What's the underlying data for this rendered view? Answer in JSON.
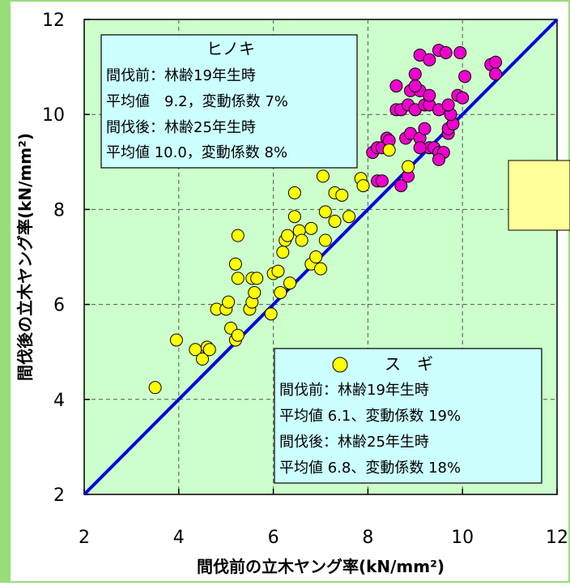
{
  "chart_data": {
    "type": "scatter",
    "xlabel": "間伐前の立木ヤング率(kN/mm²)",
    "ylabel": "間伐後の立木ヤング率(kN/mm²)",
    "xlim": [
      2,
      12
    ],
    "ylim": [
      2,
      12
    ],
    "xticks": [
      "2",
      "4",
      "6",
      "8",
      "10",
      "12"
    ],
    "yticks": [
      "2",
      "4",
      "6",
      "8",
      "10",
      "12"
    ],
    "grid": "dashed",
    "reference_line": {
      "x": [
        2,
        12
      ],
      "y": [
        2,
        12
      ]
    },
    "series": [
      {
        "name": "ヒノキ",
        "color": "#ee00cc",
        "points": [
          [
            8.1,
            9.2
          ],
          [
            8.2,
            9.3
          ],
          [
            8.3,
            9.3
          ],
          [
            8.4,
            9.5
          ],
          [
            8.45,
            9.45
          ],
          [
            8.2,
            8.6
          ],
          [
            8.3,
            8.6
          ],
          [
            8.7,
            8.5
          ],
          [
            8.85,
            8.7
          ],
          [
            8.8,
            9.5
          ],
          [
            8.9,
            9.6
          ],
          [
            9.1,
            9.5
          ],
          [
            9.2,
            9.7
          ],
          [
            9.3,
            9.3
          ],
          [
            9.1,
            9.3
          ],
          [
            9.4,
            9.3
          ],
          [
            9.5,
            9.2
          ],
          [
            9.6,
            9.2
          ],
          [
            9.5,
            9.05
          ],
          [
            9.7,
            9.6
          ],
          [
            9.7,
            9.7
          ],
          [
            9.8,
            9.8
          ],
          [
            9.75,
            10.0
          ],
          [
            8.6,
            10.1
          ],
          [
            8.7,
            10.1
          ],
          [
            8.85,
            10.2
          ],
          [
            9.0,
            10.1
          ],
          [
            9.2,
            10.2
          ],
          [
            9.3,
            10.2
          ],
          [
            9.5,
            10.1
          ],
          [
            9.7,
            10.2
          ],
          [
            9.9,
            10.4
          ],
          [
            10.0,
            10.35
          ],
          [
            8.9,
            10.5
          ],
          [
            9.1,
            10.5
          ],
          [
            9.0,
            10.6
          ],
          [
            9.3,
            10.4
          ],
          [
            8.6,
            10.6
          ],
          [
            9.0,
            10.85
          ],
          [
            9.1,
            11.25
          ],
          [
            9.3,
            11.15
          ],
          [
            9.5,
            11.35
          ],
          [
            9.65,
            11.3
          ],
          [
            9.95,
            11.3
          ],
          [
            10.05,
            10.8
          ],
          [
            10.6,
            11.05
          ],
          [
            10.7,
            11.1
          ],
          [
            10.7,
            10.85
          ]
        ]
      },
      {
        "name": "スギ",
        "color": "#ffff00",
        "points": [
          [
            3.5,
            4.25
          ],
          [
            3.95,
            5.25
          ],
          [
            4.35,
            5.05
          ],
          [
            4.5,
            4.85
          ],
          [
            4.6,
            5.1
          ],
          [
            4.65,
            5.05
          ],
          [
            4.8,
            5.9
          ],
          [
            5.0,
            5.9
          ],
          [
            5.05,
            6.05
          ],
          [
            5.1,
            5.5
          ],
          [
            5.2,
            5.25
          ],
          [
            5.25,
            5.35
          ],
          [
            5.2,
            6.85
          ],
          [
            5.25,
            6.55
          ],
          [
            5.25,
            7.45
          ],
          [
            5.5,
            5.9
          ],
          [
            5.55,
            6.05
          ],
          [
            5.55,
            6.55
          ],
          [
            5.6,
            6.25
          ],
          [
            5.65,
            6.55
          ],
          [
            5.95,
            5.8
          ],
          [
            6.0,
            6.65
          ],
          [
            6.1,
            6.7
          ],
          [
            6.15,
            6.25
          ],
          [
            6.2,
            7.1
          ],
          [
            6.25,
            7.35
          ],
          [
            6.3,
            7.45
          ],
          [
            6.35,
            6.45
          ],
          [
            6.45,
            7.85
          ],
          [
            6.45,
            8.35
          ],
          [
            6.55,
            7.55
          ],
          [
            6.6,
            7.35
          ],
          [
            6.8,
            6.85
          ],
          [
            6.8,
            7.6
          ],
          [
            6.9,
            7.0
          ],
          [
            7.0,
            6.75
          ],
          [
            7.05,
            8.7
          ],
          [
            7.1,
            7.35
          ],
          [
            7.1,
            7.95
          ],
          [
            7.3,
            8.35
          ],
          [
            7.3,
            7.75
          ],
          [
            7.45,
            8.3
          ],
          [
            7.6,
            7.85
          ],
          [
            7.85,
            8.65
          ],
          [
            7.9,
            8.5
          ],
          [
            8.45,
            9.25
          ],
          [
            8.85,
            8.9
          ]
        ]
      }
    ]
  },
  "annotations": {
    "hinoki_box": {
      "title": "ヒノキ",
      "line1": "間伐前：林齢19年生時",
      "line2": "平均値　9.2，変動係数 7%",
      "line3": "間伐後：林齢25年生時",
      "line4": "平均値 10.0，変動係数 8%"
    },
    "sugi_box": {
      "title": "ス　ギ",
      "line1": "間伐前：林齢19年生時",
      "line2": "平均値 6.1、変動係数 19%",
      "line3": "間伐後：林齢25年生時",
      "line4": "平均値 6.8、変動係数 18%"
    }
  },
  "colors": {
    "plot_background": "#ccffcc",
    "outer_border": "#99dd77",
    "box_fill": "#ccffff",
    "yellow_box_fill": "#ffff99",
    "line": "#0000dd"
  }
}
